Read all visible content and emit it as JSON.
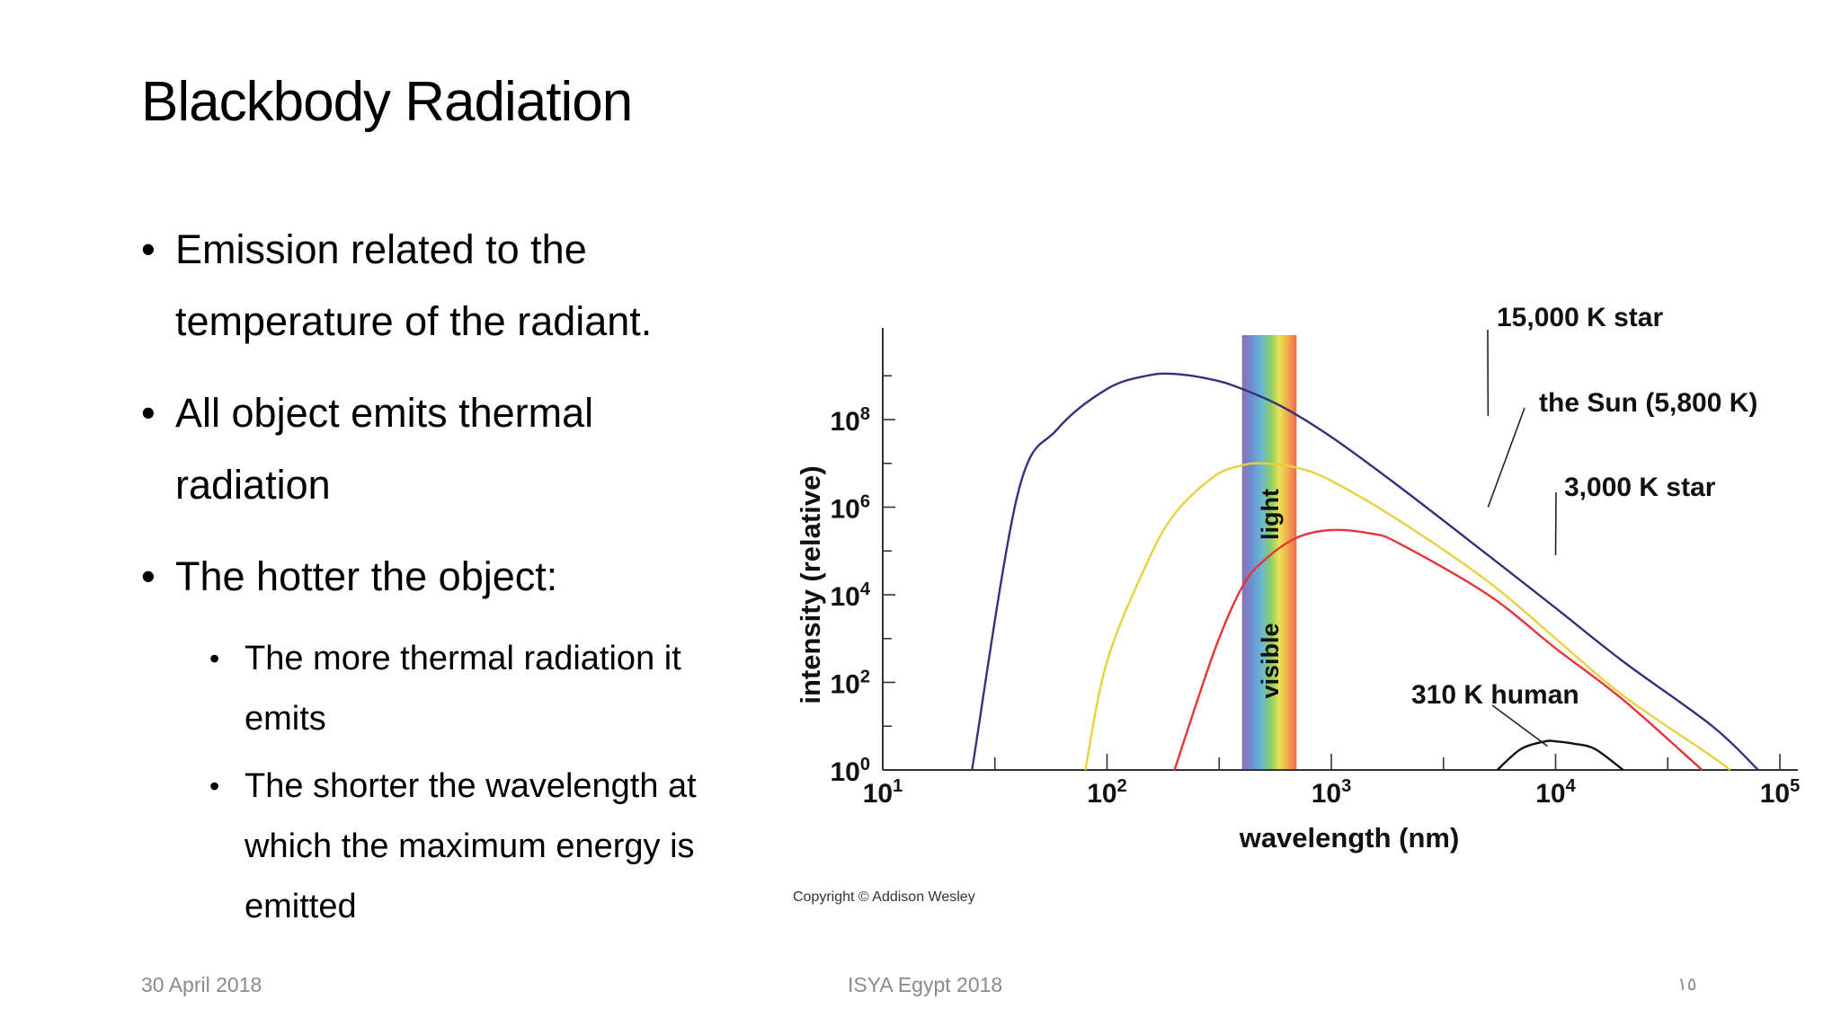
{
  "slide": {
    "title": "Blackbody Radiation",
    "bullets": [
      "Emission related to the temperature of the radiant.",
      "All object emits thermal radiation",
      "The hotter the object:"
    ],
    "sub_bullets": [
      "The more thermal radiation it emits",
      "The shorter the wavelength at which the maximum energy is emitted"
    ],
    "bullet_glyph": "•"
  },
  "footer": {
    "date": "30 April 2018",
    "center": "ISYA Egypt 2018",
    "page": "١٥"
  },
  "chart_data": {
    "type": "line",
    "xscale": "log",
    "yscale": "log",
    "xlabel": "wavelength (nm)",
    "ylabel": "intensity (relative)",
    "xlim": [
      10,
      100000
    ],
    "ylim": [
      1,
      10000000000
    ],
    "x_ticks": [
      {
        "label": "10",
        "sup": "1",
        "value": 10
      },
      {
        "label": "10",
        "sup": "2",
        "value": 100
      },
      {
        "label": "10",
        "sup": "3",
        "value": 1000
      },
      {
        "label": "10",
        "sup": "4",
        "value": 10000
      },
      {
        "label": "10",
        "sup": "5",
        "value": 100000
      }
    ],
    "y_ticks": [
      {
        "label": "10",
        "sup": "0",
        "value": 1
      },
      {
        "label": "10",
        "sup": "2",
        "value": 100
      },
      {
        "label": "10",
        "sup": "4",
        "value": 10000
      },
      {
        "label": "10",
        "sup": "6",
        "value": 1000000
      },
      {
        "label": "10",
        "sup": "8",
        "value": 100000000
      }
    ],
    "band": {
      "label_top": "light",
      "label_bottom": "visible",
      "x_from": 400,
      "x_to": 700
    },
    "series": [
      {
        "name": "15,000 K star",
        "color": "#34327a",
        "x": [
          25,
          40,
          60,
          100,
          150,
          200,
          300,
          400,
          600,
          1000,
          2000,
          5000,
          10000,
          20000,
          50000,
          80000
        ],
        "y": [
          1,
          2000000,
          60000000,
          500000000,
          1000000000,
          1100000000,
          800000000,
          500000000,
          200000000,
          40000000,
          3000000,
          80000,
          5000,
          300,
          10,
          1
        ]
      },
      {
        "name": "the Sun (5,800 K)",
        "color": "#e6d23c",
        "x": [
          80,
          100,
          150,
          200,
          300,
          400,
          500,
          700,
          1000,
          2000,
          5000,
          10000,
          20000,
          50000,
          60000
        ],
        "y": [
          1,
          300,
          50000,
          700000,
          5000000,
          9000000,
          10000000,
          8000000,
          4000000,
          500000,
          20000,
          1000,
          50,
          2,
          1
        ]
      },
      {
        "name": "3,000 K star",
        "color": "#e3353a",
        "x": [
          200,
          300,
          400,
          500,
          700,
          1000,
          1500,
          2000,
          5000,
          10000,
          20000,
          45000
        ],
        "y": [
          1,
          500,
          15000,
          60000,
          200000,
          300000,
          250000,
          150000,
          10000,
          600,
          40,
          1
        ]
      },
      {
        "name": "310 K human",
        "color": "#111111",
        "x": [
          5500,
          7000,
          9000,
          10000,
          12000,
          15000,
          20000
        ],
        "y": [
          1,
          3,
          4.5,
          4.5,
          4,
          3,
          1
        ]
      }
    ],
    "annotations": [
      {
        "text": "15,000 K star",
        "series": 0
      },
      {
        "text": "the Sun (5,800 K)",
        "series": 1
      },
      {
        "text": "3,000 K star",
        "series": 2
      },
      {
        "text": "310 K human",
        "series": 3
      }
    ],
    "copyright": "Copyright © Addison Wesley",
    "grid": false,
    "legend": "none"
  }
}
